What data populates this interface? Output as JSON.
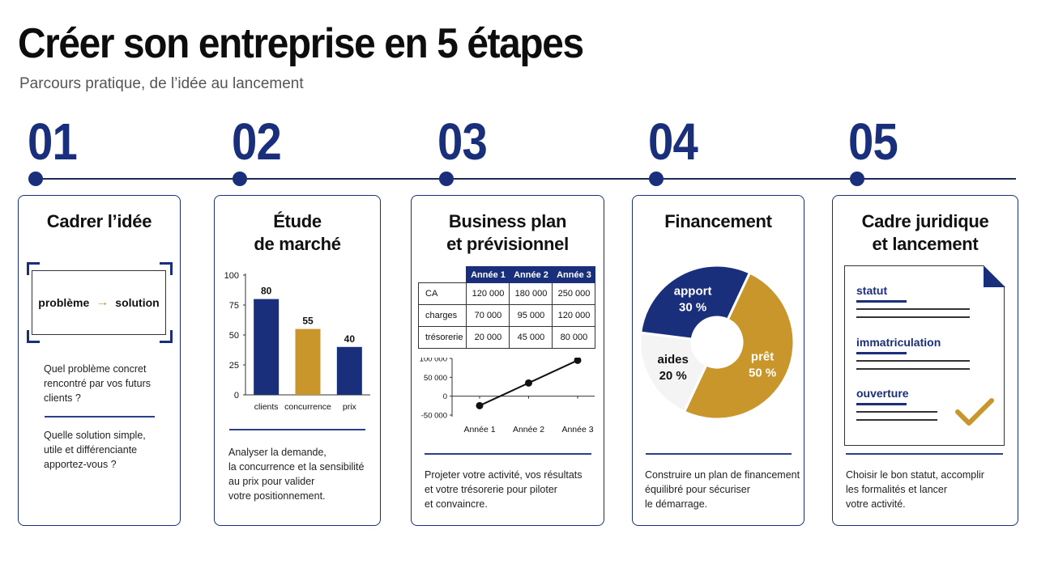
{
  "header": {
    "title": "Créer son entreprise en 5 étapes",
    "subtitle": "Parcours pratique, de l’idée au lancement"
  },
  "colors": {
    "navy": "#1a2f7c",
    "gold": "#c8962a",
    "light": "#f4f4f4"
  },
  "steps": [
    {
      "number": "01",
      "title_lines": [
        "Cadrer l’idée"
      ],
      "diagram": {
        "left": "problème",
        "arrow": "→",
        "right": "solution"
      },
      "question_1": [
        "Quel problème concret",
        "rencontré par vos futurs",
        "clients ?"
      ],
      "question_2": [
        "Quelle solution simple,",
        "utile et différenciante",
        "apportez-vous ?"
      ]
    },
    {
      "number": "02",
      "title_lines": [
        "Étude",
        "de marché"
      ],
      "desc_lines": [
        "Analyser la demande,",
        "la concurrence et la sensibilité",
        "au prix pour valider",
        "votre positionnement."
      ]
    },
    {
      "number": "03",
      "title_lines": [
        "Business plan",
        "et prévisionnel"
      ],
      "table": {
        "headers": [
          "Année 1",
          "Année 2",
          "Année 3"
        ],
        "rows": [
          {
            "label": "CA",
            "values": [
              "120 000",
              "180 000",
              "250 000"
            ]
          },
          {
            "label": "charges",
            "values": [
              "70 000",
              "95 000",
              "120 000"
            ]
          },
          {
            "label": "trésorerie",
            "values": [
              "20 000",
              "45 000",
              "80 000"
            ]
          }
        ]
      },
      "desc_lines": [
        "Projeter votre activité, vos résultats",
        "et votre trésorerie pour piloter",
        "et convaincre."
      ]
    },
    {
      "number": "04",
      "title_lines": [
        "Financement"
      ],
      "desc_lines": [
        "Construire un plan de financement",
        "équilibré pour sécuriser",
        "le démarrage."
      ]
    },
    {
      "number": "05",
      "title_lines": [
        "Cadre juridique",
        "et lancement"
      ],
      "doc_items": [
        "statut",
        "immatriculation",
        "ouverture"
      ],
      "desc_lines": [
        "Choisir le bon statut, accomplir",
        "les formalités et lancer",
        "votre activité."
      ]
    }
  ],
  "chart_data": [
    {
      "type": "bar",
      "categories": [
        "clients",
        "concurrence",
        "prix"
      ],
      "values": [
        80,
        55,
        40
      ],
      "data_labels": [
        "80",
        "55",
        "40"
      ],
      "colors": [
        "#1a2f7c",
        "#c8962a",
        "#1a2f7c"
      ],
      "ylim": [
        0,
        100
      ],
      "yticks": [
        0,
        25,
        50,
        75,
        100
      ],
      "title": "",
      "xlabel": "",
      "ylabel": ""
    },
    {
      "type": "line",
      "x": [
        "Année 1",
        "Année 2",
        "Année 3"
      ],
      "values": [
        -25000,
        35000,
        95000
      ],
      "ylim": [
        -50000,
        100000
      ],
      "yticks": [
        -50000,
        0,
        50000,
        100000
      ],
      "ytick_labels": [
        "-50 000",
        "0",
        "50 000",
        "100 000"
      ],
      "title": "",
      "xlabel": "",
      "ylabel": ""
    },
    {
      "type": "pie",
      "donut": true,
      "slices": [
        {
          "label": "prêt",
          "pct_label": "50 %",
          "value": 50,
          "color": "#c8962a"
        },
        {
          "label": "aides",
          "pct_label": "20 %",
          "value": 20,
          "color": "#f4f4f4"
        },
        {
          "label": "apport",
          "pct_label": "30 %",
          "value": 30,
          "color": "#1a2f7c"
        }
      ],
      "title": ""
    }
  ]
}
